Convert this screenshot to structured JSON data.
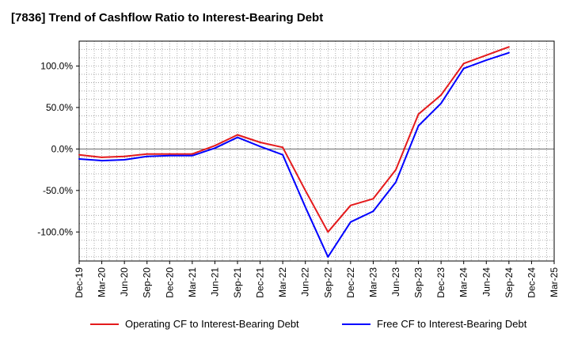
{
  "chart_data": {
    "type": "line",
    "title": "[7836]  Trend of Cashflow Ratio to Interest-Bearing Debt",
    "xlabel": "",
    "ylabel": "",
    "x": [
      "Dec-19",
      "Mar-20",
      "Jun-20",
      "Sep-20",
      "Dec-20",
      "Mar-21",
      "Jun-21",
      "Sep-21",
      "Dec-21",
      "Mar-22",
      "Jun-22",
      "Sep-22",
      "Dec-22",
      "Mar-23",
      "Jun-23",
      "Sep-23",
      "Dec-23",
      "Mar-24",
      "Jun-24",
      "Sep-24",
      "Dec-24",
      "Mar-25"
    ],
    "ylim": [
      -135,
      130
    ],
    "yticks": [
      100,
      50,
      0,
      -50,
      -100
    ],
    "ytick_labels": [
      "100.0%",
      "50.0%",
      "0.0%",
      "-50.0%",
      "-100.0%"
    ],
    "grid": true,
    "legend_position": "bottom",
    "series": [
      {
        "name": "Operating CF to Interest-Bearing Debt",
        "color": "#e41a1c",
        "values": [
          -7,
          -10,
          -9,
          -6,
          -6,
          -6,
          4,
          17,
          8,
          2,
          -50,
          -100,
          -68,
          -60,
          -25,
          42,
          65,
          103,
          113,
          123,
          null,
          null
        ]
      },
      {
        "name": "Free CF to Interest-Bearing Debt",
        "color": "#0000ff",
        "values": [
          -12,
          -14,
          -13,
          -9,
          -8,
          -8,
          1,
          14,
          3,
          -7,
          -70,
          -130,
          -88,
          -75,
          -40,
          28,
          55,
          97,
          107,
          116,
          null,
          null
        ]
      }
    ]
  }
}
